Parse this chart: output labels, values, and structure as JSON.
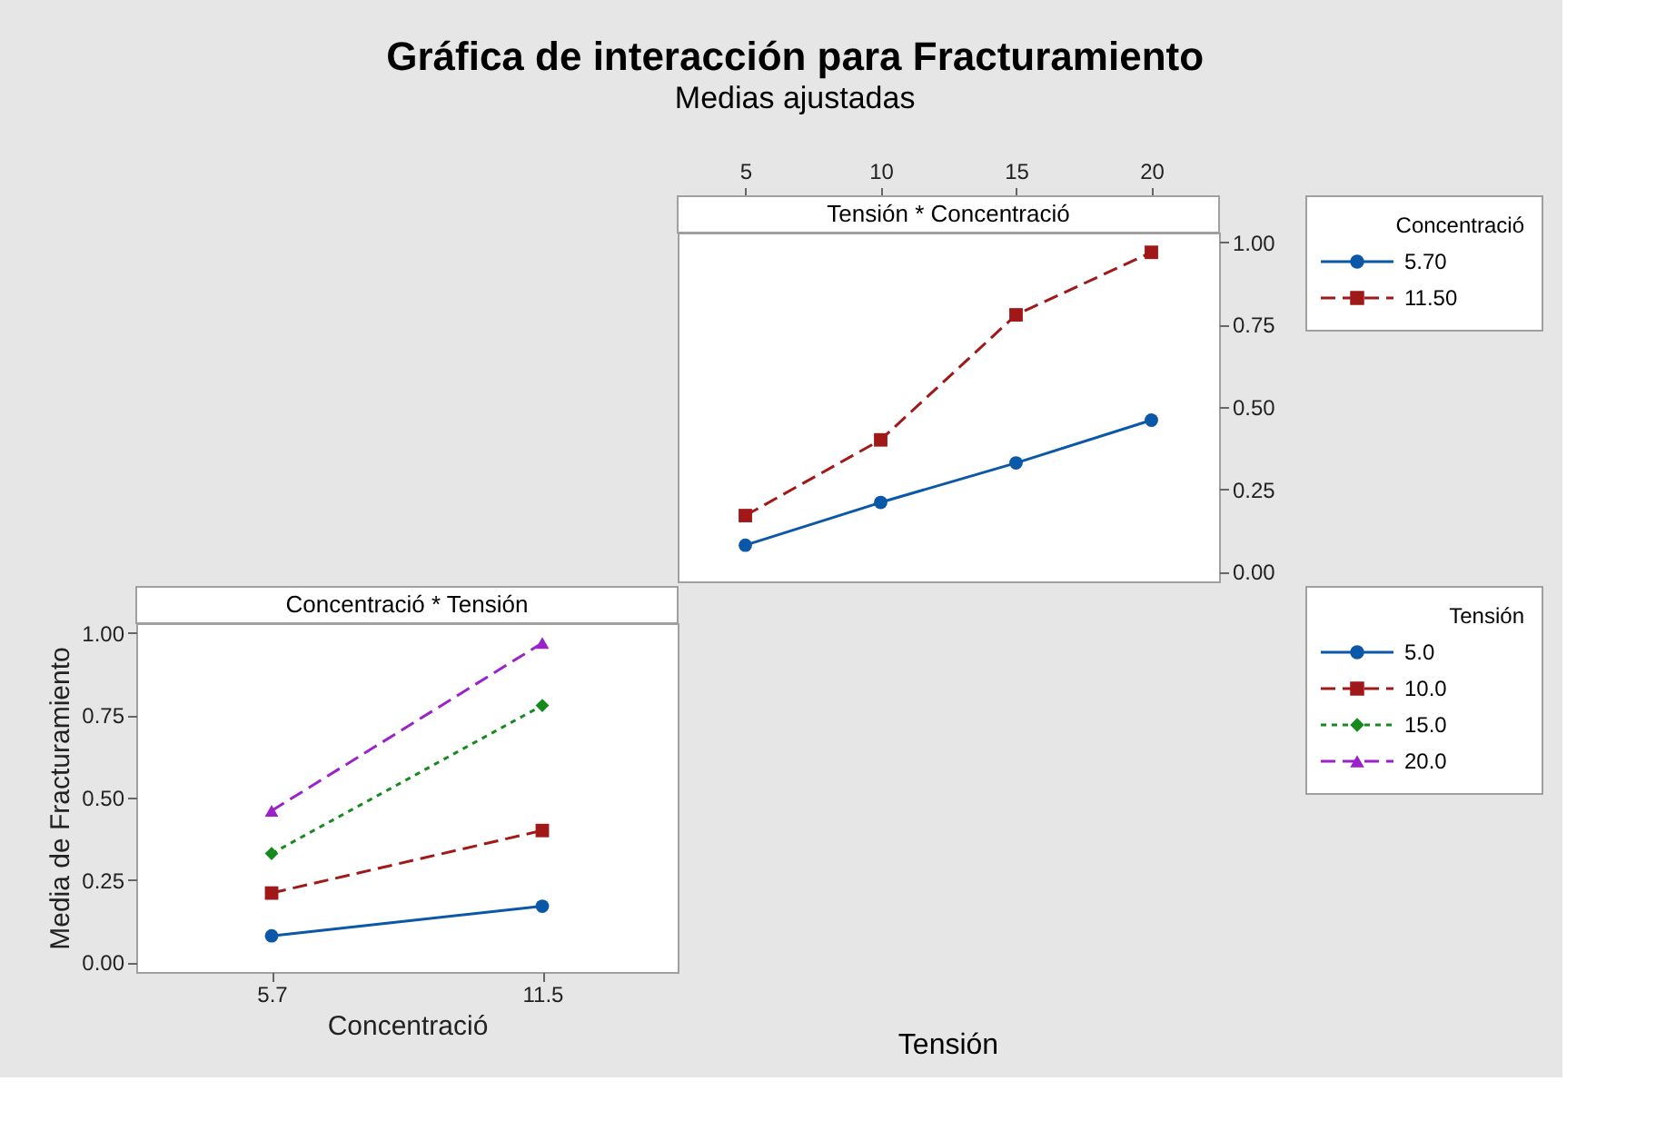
{
  "chart_data": [
    {
      "type": "line",
      "title": "Tensión * Concentració",
      "annotations": [
        "Gráfica de interacción para Fracturamiento",
        "Medias ajustadas"
      ],
      "xlabel": "Tensión",
      "x": [
        5,
        10,
        15,
        20
      ],
      "xlim": [
        2.5,
        22.5
      ],
      "xticks": [
        5,
        10,
        15,
        20
      ],
      "ylim": [
        -0.03,
        1.03
      ],
      "yticks": [
        {
          "value": 0,
          "label": "0.00"
        },
        {
          "value": 0.25,
          "label": "0.25"
        },
        {
          "value": 0.5,
          "label": "0.50"
        },
        {
          "value": 0.75,
          "label": "0.75"
        },
        {
          "value": 1,
          "label": "1.00"
        }
      ],
      "legend_title": "Concentració",
      "legend": "right",
      "grid": false,
      "series": [
        {
          "name": "5.70",
          "color": "#0b57a8",
          "marker": "circle",
          "line_style": "solid",
          "values": [
            0.08,
            0.21,
            0.33,
            0.46
          ]
        },
        {
          "name": "11.50",
          "color": "#a01818",
          "marker": "square",
          "line_style": "dashed",
          "values": [
            0.17,
            0.4,
            0.78,
            0.97
          ]
        }
      ]
    },
    {
      "type": "line",
      "title": "Concentració * Tensión",
      "xlabel": "Concentració",
      "ylabel": "Media de Fracturamiento",
      "categories": [
        "5.7",
        "11.5"
      ],
      "ylim": [
        -0.03,
        1.03
      ],
      "yticks": [
        {
          "value": 0,
          "label": "0.00"
        },
        {
          "value": 0.25,
          "label": "0.25"
        },
        {
          "value": 0.5,
          "label": "0.50"
        },
        {
          "value": 0.75,
          "label": "0.75"
        },
        {
          "value": 1,
          "label": "1.00"
        }
      ],
      "legend_title": "Tensión",
      "legend": "right",
      "grid": false,
      "series": [
        {
          "name": "5.0",
          "color": "#0b57a8",
          "marker": "circle",
          "line_style": "solid",
          "values": [
            0.08,
            0.17
          ]
        },
        {
          "name": "10.0",
          "color": "#a01818",
          "marker": "square",
          "line_style": "dashed",
          "values": [
            0.21,
            0.4
          ]
        },
        {
          "name": "15.0",
          "color": "#168a1e",
          "marker": "diamond",
          "line_style": "dotted",
          "values": [
            0.33,
            0.78
          ]
        },
        {
          "name": "20.0",
          "color": "#9a22c8",
          "marker": "triangle",
          "line_style": "dashed",
          "values": [
            0.46,
            0.97
          ]
        }
      ]
    }
  ]
}
